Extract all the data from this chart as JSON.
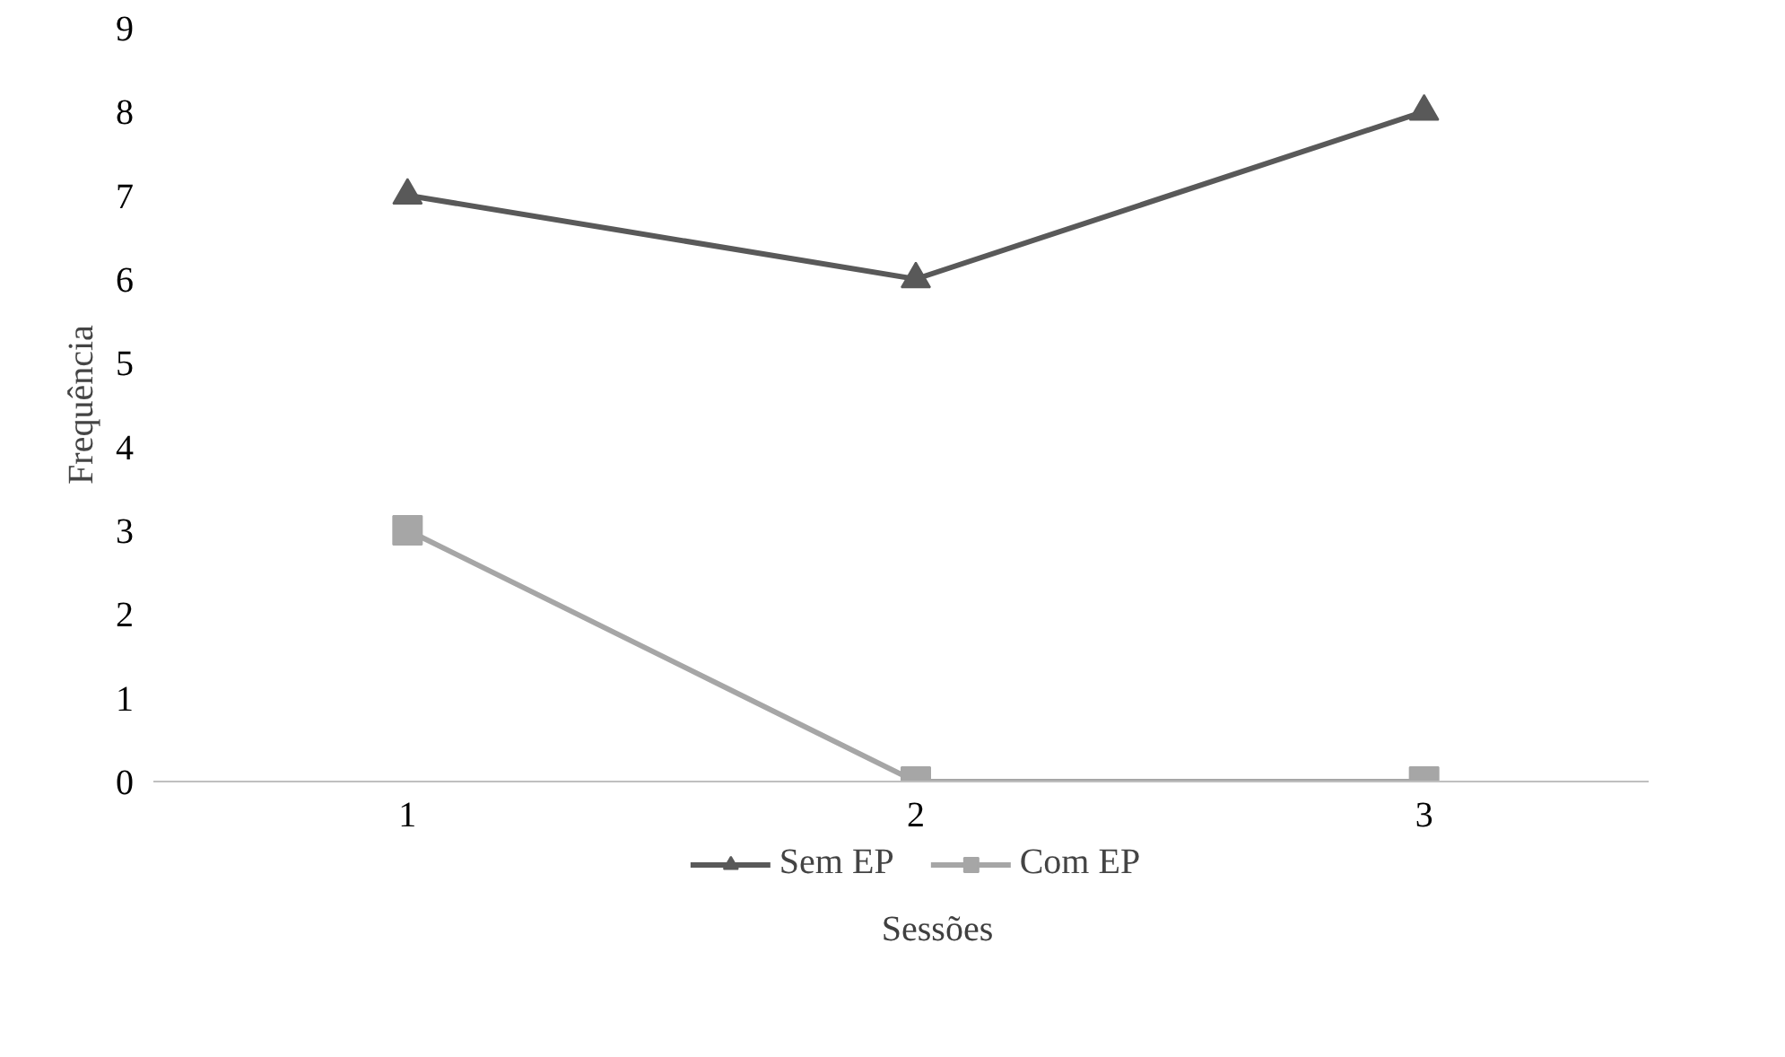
{
  "chart_data": {
    "type": "line",
    "xlabel": "Sessões",
    "ylabel": "Frequência",
    "categories": [
      "1",
      "2",
      "3"
    ],
    "ylim": [
      0,
      9
    ],
    "yticks": [
      0,
      1,
      2,
      3,
      4,
      5,
      6,
      7,
      8,
      9
    ],
    "grid": false,
    "legend": "bottom",
    "line_style": "solid",
    "series": [
      {
        "name": "Sem EP",
        "color": "#595959",
        "marker": "triangle",
        "values": [
          7,
          6,
          8
        ]
      },
      {
        "name": "Com EP",
        "color": "#a6a6a6",
        "marker": "square",
        "values": [
          3,
          0,
          0
        ]
      }
    ]
  }
}
